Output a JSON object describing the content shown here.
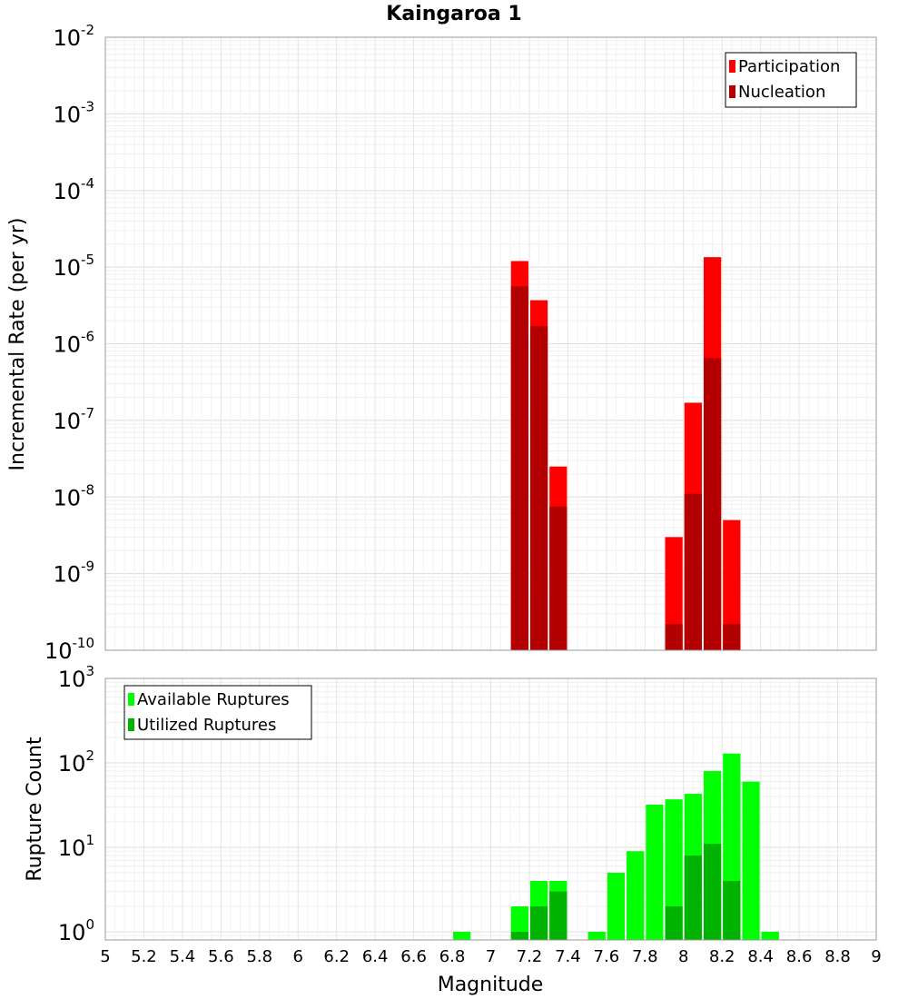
{
  "chart_data": [
    {
      "type": "bar",
      "title": "Kaingaroa 1",
      "xlabel": "",
      "ylabel": "Incremental Rate (per yr)",
      "ylim": [
        1e-10,
        0.01
      ],
      "yscale": "log",
      "xlim": [
        5,
        9
      ],
      "bar_width": 0.1,
      "grid": true,
      "legend": "top-right",
      "ytick_labels": [
        {
          "base": "10",
          "exp": "-10"
        },
        {
          "base": "10",
          "exp": "-9"
        },
        {
          "base": "10",
          "exp": "-8"
        },
        {
          "base": "10",
          "exp": "-7"
        },
        {
          "base": "10",
          "exp": "-6"
        },
        {
          "base": "10",
          "exp": "-5"
        },
        {
          "base": "10",
          "exp": "-4"
        },
        {
          "base": "10",
          "exp": "-3"
        },
        {
          "base": "10",
          "exp": "-2"
        }
      ],
      "series": [
        {
          "name": "Participation",
          "color": "#ff0000",
          "points": [
            {
              "x": 7.15,
              "y": 1.2e-05
            },
            {
              "x": 7.25,
              "y": 3.7e-06
            },
            {
              "x": 7.35,
              "y": 2.5e-08
            },
            {
              "x": 7.95,
              "y": 3e-09
            },
            {
              "x": 8.05,
              "y": 1.7e-07
            },
            {
              "x": 8.15,
              "y": 1.35e-05
            },
            {
              "x": 8.25,
              "y": 5e-09
            }
          ]
        },
        {
          "name": "Nucleation",
          "color": "#b30000",
          "points": [
            {
              "x": 7.15,
              "y": 5.6e-06
            },
            {
              "x": 7.25,
              "y": 1.7e-06
            },
            {
              "x": 7.35,
              "y": 7.5e-09
            },
            {
              "x": 7.95,
              "y": 2.2e-10
            },
            {
              "x": 8.05,
              "y": 1.1e-08
            },
            {
              "x": 8.15,
              "y": 6.5e-07
            },
            {
              "x": 8.25,
              "y": 2.2e-10
            }
          ]
        }
      ]
    },
    {
      "type": "bar",
      "title": "",
      "xlabel": "Magnitude",
      "ylabel": "Rupture Count",
      "ylim": [
        0.8,
        1000
      ],
      "yscale": "log",
      "xlim": [
        5,
        9
      ],
      "bar_width": 0.1,
      "grid": true,
      "legend": "top-left",
      "xtick_labels": [
        "5",
        "5.2",
        "5.4",
        "5.6",
        "5.8",
        "6",
        "6.2",
        "6.4",
        "6.6",
        "6.8",
        "7",
        "7.2",
        "7.4",
        "7.6",
        "7.8",
        "8",
        "8.2",
        "8.4",
        "8.6",
        "8.8",
        "9"
      ],
      "ytick_labels": [
        {
          "base": "10",
          "exp": "0"
        },
        {
          "base": "10",
          "exp": "1"
        },
        {
          "base": "10",
          "exp": "2"
        },
        {
          "base": "10",
          "exp": "3"
        }
      ],
      "series": [
        {
          "name": "Available Ruptures",
          "color": "#00ff00",
          "points": [
            {
              "x": 6.85,
              "y": 1
            },
            {
              "x": 7.15,
              "y": 2
            },
            {
              "x": 7.25,
              "y": 4
            },
            {
              "x": 7.35,
              "y": 4
            },
            {
              "x": 7.55,
              "y": 1
            },
            {
              "x": 7.65,
              "y": 5
            },
            {
              "x": 7.75,
              "y": 9
            },
            {
              "x": 7.85,
              "y": 32
            },
            {
              "x": 7.95,
              "y": 37
            },
            {
              "x": 8.05,
              "y": 43
            },
            {
              "x": 8.15,
              "y": 80
            },
            {
              "x": 8.25,
              "y": 129
            },
            {
              "x": 8.35,
              "y": 60
            },
            {
              "x": 8.45,
              "y": 1
            }
          ]
        },
        {
          "name": "Utilized Ruptures",
          "color": "#00b300",
          "points": [
            {
              "x": 7.15,
              "y": 1
            },
            {
              "x": 7.25,
              "y": 2
            },
            {
              "x": 7.35,
              "y": 3
            },
            {
              "x": 7.95,
              "y": 2
            },
            {
              "x": 8.05,
              "y": 8
            },
            {
              "x": 8.15,
              "y": 11
            },
            {
              "x": 8.25,
              "y": 4
            }
          ]
        }
      ]
    }
  ]
}
